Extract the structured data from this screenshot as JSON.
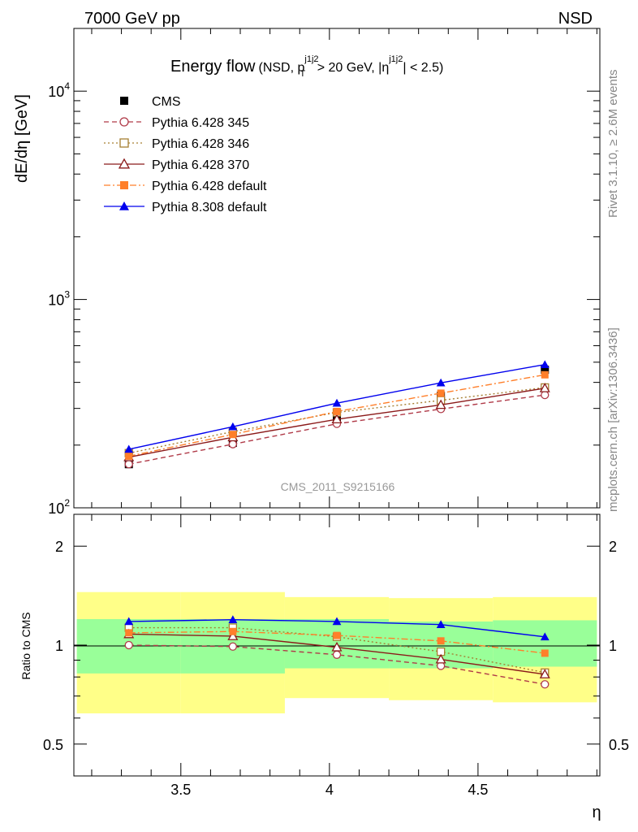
{
  "header": {
    "left": "7000 GeV pp",
    "right": "NSD",
    "side_top": "Rivet 3.1.10, ≥ 2.6M events",
    "side_bottom": "mcplots.cern.ch [arXiv:1306.3436]",
    "watermark": "CMS_2011_S9215166"
  },
  "title": {
    "main": "Energy flow",
    "p1": "(NSD, p",
    "pt_sup": "j1j2",
    "pt_sub": "T",
    "p2": " > 20 GeV, |η",
    "eta_sup": "j1j2",
    "p3": "| < 2.5)"
  },
  "chart_data": [
    {
      "type": "line",
      "panel": "main",
      "ylabel": "dE/dη [GeV]",
      "yscale": "log",
      "xlim": [
        3.14,
        4.91
      ],
      "ylim": [
        100,
        20000
      ],
      "grid": false,
      "legend_position": "top-left",
      "y_tick_labels": [
        {
          "v": 10000,
          "base": "10",
          "exp": "4"
        },
        {
          "v": 1000,
          "base": "10",
          "exp": "3"
        },
        {
          "v": 100,
          "base": "10",
          "exp": "2"
        }
      ],
      "x": [
        3.325,
        3.675,
        4.025,
        4.375,
        4.725
      ],
      "series": [
        {
          "name": "CMS",
          "values": [
            162,
            205,
            270,
            345,
            460
          ],
          "color": "#000000",
          "marker": "square-filled",
          "dash": "",
          "ref": true
        },
        {
          "name": "Pythia 6.428 345",
          "values": [
            162,
            202,
            253,
            298,
            348
          ],
          "color": "#b03a48",
          "marker": "circle-open",
          "dash": "6,4"
        },
        {
          "name": "Pythia 6.428 346",
          "values": [
            183,
            232,
            287,
            328,
            378
          ],
          "color": "#a67f32",
          "marker": "square-open",
          "dash": "2,3"
        },
        {
          "name": "Pythia 6.428 370",
          "values": [
            175,
            218,
            266,
            312,
            375
          ],
          "color": "#8b1a1a",
          "marker": "triangle-open",
          "dash": ""
        },
        {
          "name": "Pythia 6.428 default",
          "values": [
            177,
            225,
            290,
            355,
            435
          ],
          "color": "#ff7f2a",
          "marker": "square-filled",
          "dash": "8,3,2,3"
        },
        {
          "name": "Pythia 8.308 default",
          "values": [
            191,
            245,
            318,
            398,
            487
          ],
          "color": "#0000ee",
          "marker": "triangle-filled",
          "dash": ""
        }
      ]
    },
    {
      "type": "line",
      "panel": "ratio",
      "ylabel": "Ratio to CMS",
      "xlabel": "η",
      "yscale": "log",
      "xlim": [
        3.14,
        4.91
      ],
      "ylim": [
        0.4,
        2.5
      ],
      "x_ticks": [
        3.5,
        4,
        4.5
      ],
      "x_tick_labels": [
        "3.5",
        "4",
        "4.5"
      ],
      "y_ticks": [
        0.5,
        1,
        2
      ],
      "y_tick_labels": [
        "0.5",
        "1",
        "2"
      ],
      "band_edges": [
        3.15,
        3.5,
        3.85,
        4.2,
        4.55,
        4.9
      ],
      "stat_band": [
        [
          0.82,
          1.2
        ],
        [
          0.82,
          1.2
        ],
        [
          0.85,
          1.2
        ],
        [
          0.85,
          1.18
        ],
        [
          0.86,
          1.19
        ]
      ],
      "total_band": [
        [
          0.62,
          1.45
        ],
        [
          0.62,
          1.45
        ],
        [
          0.69,
          1.4
        ],
        [
          0.68,
          1.39
        ],
        [
          0.67,
          1.4
        ]
      ],
      "series": [
        {
          "name": "Pythia 6.428 345",
          "values": [
            1.0,
            0.99,
            0.935,
            0.865,
            0.76
          ]
        },
        {
          "name": "Pythia 6.428 346",
          "values": [
            1.13,
            1.13,
            1.06,
            0.955,
            0.825
          ]
        },
        {
          "name": "Pythia 6.428 370",
          "values": [
            1.08,
            1.065,
            0.985,
            0.905,
            0.815
          ]
        },
        {
          "name": "Pythia 6.428 default",
          "values": [
            1.09,
            1.1,
            1.07,
            1.03,
            0.945
          ]
        },
        {
          "name": "Pythia 8.308 default",
          "values": [
            1.18,
            1.195,
            1.18,
            1.155,
            1.06
          ]
        }
      ]
    }
  ]
}
